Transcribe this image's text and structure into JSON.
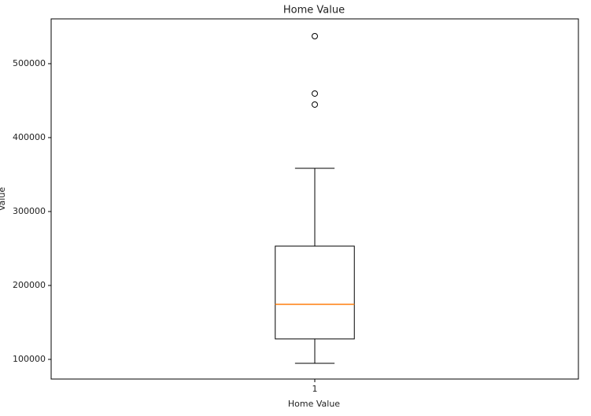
{
  "chart_data": {
    "type": "box",
    "title": "Home Value",
    "xlabel": "Home Value",
    "ylabel": "Value",
    "categories": [
      "1"
    ],
    "xlim": [
      0.5,
      1.5
    ],
    "xticks": [
      1
    ],
    "ylim": [
      73400,
      560600
    ],
    "yticks": [
      100000,
      200000,
      300000,
      400000,
      500000
    ],
    "median_color": "#ff7f0e",
    "color": "#000000",
    "boxes": [
      {
        "whislo": 94700,
        "q1": 127700,
        "med": 174500,
        "q3": 253200,
        "whishi": 358500,
        "fliers": [
          537200,
          459600,
          444700
        ]
      }
    ]
  }
}
